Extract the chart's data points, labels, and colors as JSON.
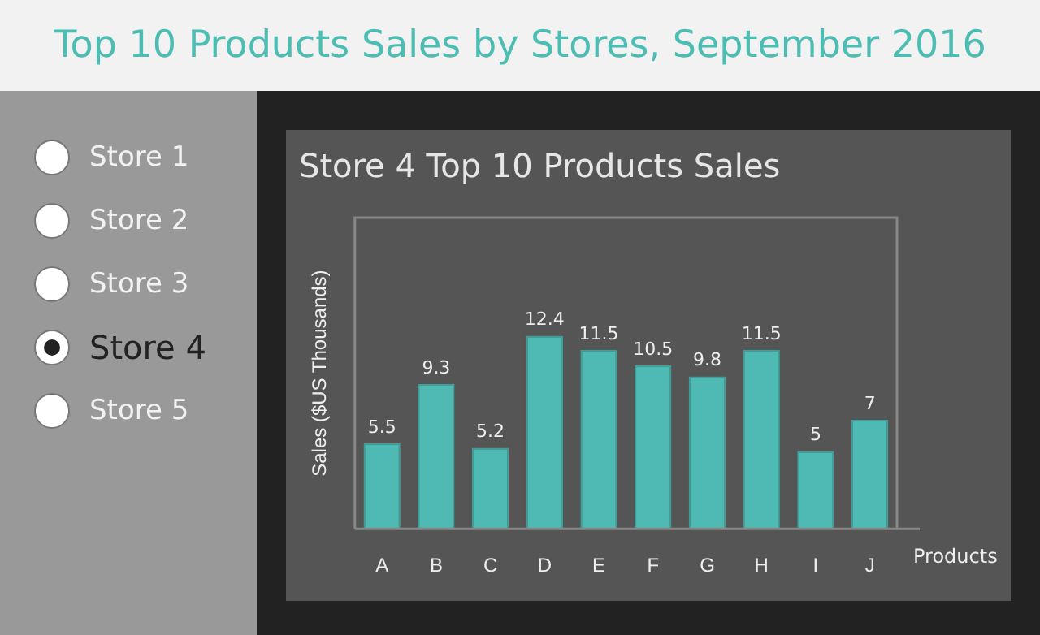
{
  "chart_data": {
    "type": "bar",
    "title": "Top 10 Products Sales by Stores, September 2016",
    "subtitle": "Store 4 Top 10 Products Sales",
    "xlabel": "Products",
    "ylabel": "Sales ($US Thousands)",
    "annotations": [
      "Store 1",
      "Store 2",
      "Store 3",
      "Store 4",
      "Store 5"
    ],
    "categories": [
      "A",
      "B",
      "C",
      "D",
      "E",
      "F",
      "G",
      "H",
      "I",
      "J"
    ],
    "values": [
      5.5,
      9.3,
      5.2,
      12.4,
      11.5,
      10.5,
      9.8,
      11.5,
      5,
      7
    ],
    "color": "#4fb9b3",
    "ylim": [
      0,
      20
    ],
    "tick_labels": "x",
    "data_labels": true
  }
}
